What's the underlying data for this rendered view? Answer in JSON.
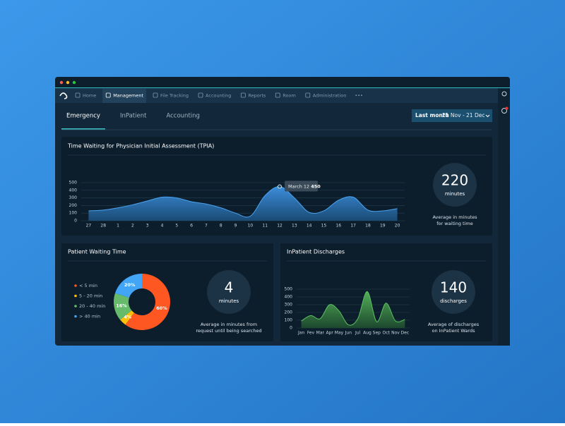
{
  "nav": [
    {
      "label": "Home"
    },
    {
      "label": "Management",
      "active": true
    },
    {
      "label": "File Tracking"
    },
    {
      "label": "Accounting"
    },
    {
      "label": "Reports"
    },
    {
      "label": "Room"
    },
    {
      "label": "Administration"
    },
    {
      "label": "•••"
    }
  ],
  "tabs": [
    {
      "label": "Emergency",
      "active": true
    },
    {
      "label": "InPatient"
    },
    {
      "label": "Accounting"
    }
  ],
  "date_filter": {
    "label": "Last month",
    "range": "21 Nov - 21 Dec"
  },
  "chart_data": [
    {
      "type": "area",
      "title": "Time Waiting for Physician Initial Assessment (TPIA)",
      "categories": [
        "27",
        "28",
        "1",
        "2",
        "3",
        "4",
        "5",
        "6",
        "7",
        "8",
        "9",
        "10",
        "11",
        "12",
        "13",
        "14",
        "15",
        "16",
        "17",
        "18",
        "19",
        "20"
      ],
      "values": [
        130,
        140,
        170,
        210,
        260,
        310,
        300,
        250,
        220,
        170,
        100,
        60,
        330,
        450,
        300,
        110,
        130,
        270,
        310,
        140,
        130,
        160
      ],
      "color": "#4aa3f0",
      "ylim": [
        0,
        500
      ],
      "yticks": [
        0,
        100,
        200,
        300,
        400,
        500
      ],
      "grid": true,
      "tooltip": {
        "label": "March 12",
        "value": 450
      },
      "stat": {
        "value": 220,
        "unit": "minutes",
        "caption": [
          "Average in minutes",
          "for waiting time"
        ]
      }
    },
    {
      "type": "pie",
      "title": "Patient Waiting Time",
      "donut": true,
      "categories": [
        "< 5 min",
        "5 - 20 min",
        "20 - 40 min",
        "> 40 min"
      ],
      "values": [
        60,
        4,
        16,
        20
      ],
      "value_labels": [
        "60%",
        "4%",
        "16%",
        "20%"
      ],
      "colors": [
        "#ff5722",
        "#ffc107",
        "#66bb6a",
        "#42a5f5"
      ],
      "stat": {
        "value": 4,
        "unit": "minutes",
        "caption": [
          "Average in minutes from",
          "request until being searched"
        ]
      }
    },
    {
      "type": "area",
      "title": "InPatient Discharges",
      "categories": [
        "Jan",
        "Fev",
        "Mar",
        "Apr",
        "May",
        "Jun",
        "Jul",
        "Aug",
        "Sep",
        "Oct",
        "Nov",
        "Dec"
      ],
      "values": [
        90,
        160,
        120,
        300,
        220,
        40,
        120,
        470,
        80,
        320,
        90,
        110
      ],
      "color": "#5cc060",
      "ylim": [
        0,
        500
      ],
      "yticks": [
        0,
        100,
        200,
        300,
        400,
        500
      ],
      "grid": true,
      "stat": {
        "value": 140,
        "unit": "discharges",
        "caption": [
          "Average of discharges",
          "on InPatient Wards"
        ]
      }
    }
  ]
}
